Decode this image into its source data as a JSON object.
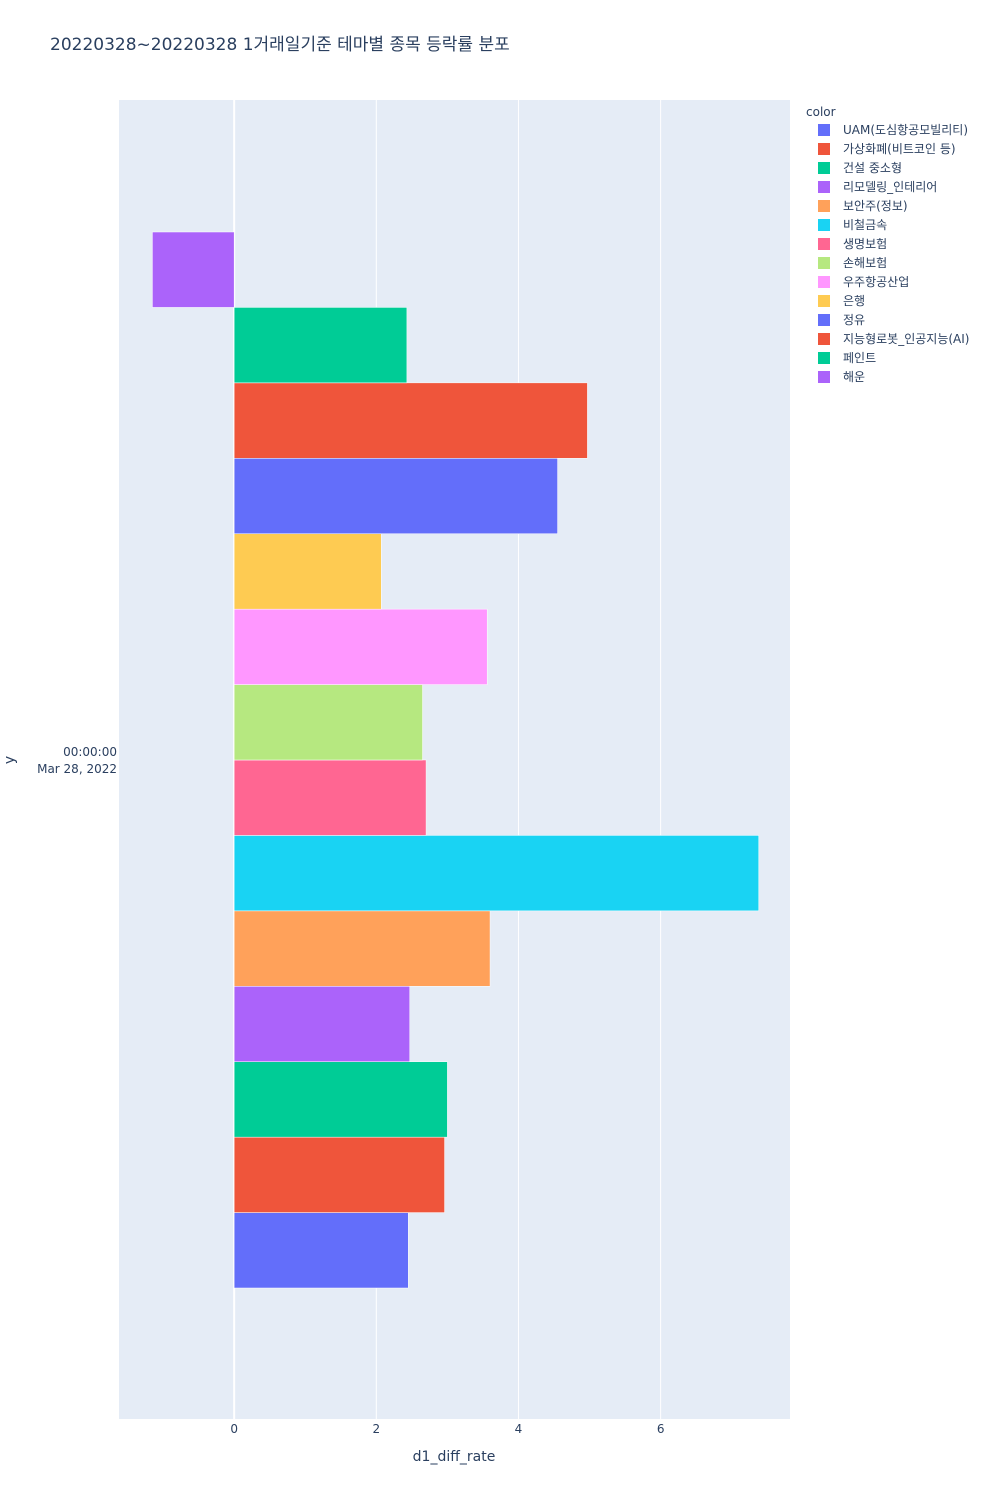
{
  "chart_data": {
    "type": "bar",
    "orientation": "horizontal",
    "barmode": "group",
    "title": "20220328~20220328 1거래일기준 테마별 종목 등락률 분포",
    "xlabel": "d1_diff_rate",
    "ylabel": "y",
    "y_category_line1": "00:00:00",
    "y_category_line2": "Mar 28, 2022",
    "xlim": [
      -1.62,
      7.82
    ],
    "xticks": [
      0,
      2,
      4,
      6
    ],
    "grid": true,
    "legend_title": "color",
    "legend_position": "top-right",
    "series": [
      {
        "name": "UAM(도심항공모빌리티)",
        "value": 2.45,
        "color": "#636efa"
      },
      {
        "name": "가상화폐(비트코인 등)",
        "value": 2.96,
        "color": "#EF553B"
      },
      {
        "name": "건설 중소형",
        "value": 3.0,
        "color": "#00cc96"
      },
      {
        "name": "리모델링_인테리어",
        "value": 2.47,
        "color": "#ab63fa"
      },
      {
        "name": "보안주(정보)",
        "value": 3.6,
        "color": "#FFA15A"
      },
      {
        "name": "비철금속",
        "value": 7.38,
        "color": "#19d3f3"
      },
      {
        "name": "생명보험",
        "value": 2.7,
        "color": "#FF6692"
      },
      {
        "name": "손해보험",
        "value": 2.65,
        "color": "#B6E880"
      },
      {
        "name": "우주항공산업",
        "value": 3.56,
        "color": "#FF97FF"
      },
      {
        "name": "은행",
        "value": 2.07,
        "color": "#FECB52"
      },
      {
        "name": "정유",
        "value": 4.55,
        "color": "#636efa"
      },
      {
        "name": "지능형로봇_인공지능(AI)",
        "value": 4.97,
        "color": "#EF553B"
      },
      {
        "name": "페인트",
        "value": 2.43,
        "color": "#00cc96"
      },
      {
        "name": "해운",
        "value": -1.15,
        "color": "#ab63fa"
      }
    ]
  },
  "colors": {
    "plot_bg": "#e5ecf6",
    "grid": "#ffffff",
    "text": "#2a3f5f"
  }
}
